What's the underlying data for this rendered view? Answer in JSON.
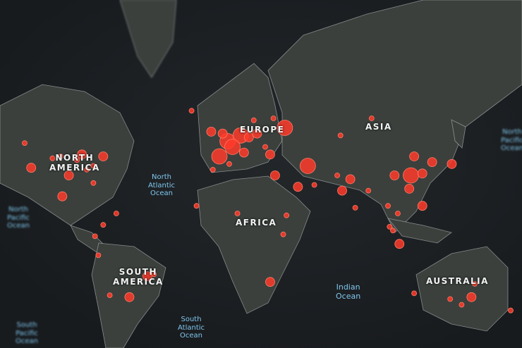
{
  "colors": {
    "background": "#1b1e21",
    "land": "#3b403c",
    "border": "#cfd6d8",
    "hotspot": "#ff3b2a",
    "ocean_label": "#7fc7ee"
  },
  "continents": {
    "north_america": "NORTH\nAMERICA",
    "europe": "EUROPE",
    "asia": "ASIA",
    "africa": "AFRICA",
    "south_america": "SOUTH\nAMERICA",
    "australia": "AUSTRALIA"
  },
  "oceans": {
    "north_atlantic": "North\nAtlantic\nOcean",
    "north_pacific_left": "North\nPacific\nOcean",
    "north_pacific_right": "North\nPacific\nOcean",
    "south_atlantic": "South\nAtlantic\nOcean",
    "indian": "Indian\nOcean",
    "south_pacific": "South\nPacific\nOcean"
  },
  "hotspots": [
    [
      2,
      48,
      3
    ],
    [
      10,
      51,
      3
    ],
    [
      -3,
      40,
      3
    ],
    [
      12,
      42,
      2
    ],
    [
      -1,
      52,
      2
    ],
    [
      5,
      45,
      3
    ],
    [
      15,
      50,
      2
    ],
    [
      20,
      52,
      2
    ],
    [
      25,
      45,
      1
    ],
    [
      -8,
      53,
      2
    ],
    [
      30,
      60,
      1
    ],
    [
      37,
      55,
      3
    ],
    [
      28,
      41,
      2
    ],
    [
      18,
      59,
      1
    ],
    [
      -20,
      64,
      1
    ],
    [
      -74,
      40,
      2
    ],
    [
      -87,
      41,
      2
    ],
    [
      -118,
      34,
      2
    ],
    [
      -95,
      30,
      2
    ],
    [
      -80,
      35,
      1
    ],
    [
      -100,
      40,
      1
    ],
    [
      -122,
      47,
      1
    ],
    [
      -84,
      33,
      1
    ],
    [
      -90,
      38,
      1
    ],
    [
      -105,
      39,
      1
    ],
    [
      -80,
      26,
      1
    ],
    [
      -99,
      19,
      2
    ],
    [
      -47,
      -23,
      2
    ],
    [
      -58,
      -34,
      2
    ],
    [
      -70,
      -33,
      1
    ],
    [
      -77,
      -12,
      1
    ],
    [
      -74,
      4,
      1
    ],
    [
      -66,
      10,
      1
    ],
    [
      -79,
      -2,
      1
    ],
    [
      -43,
      -22,
      1
    ],
    [
      31,
      30,
      2
    ],
    [
      3,
      36,
      1
    ],
    [
      -7,
      33,
      1
    ],
    [
      8,
      10,
      1
    ],
    [
      36,
      -1,
      1
    ],
    [
      28,
      -26,
      2
    ],
    [
      38,
      9,
      1
    ],
    [
      -17,
      14,
      1
    ],
    [
      51,
      35,
      3
    ],
    [
      45,
      24,
      2
    ],
    [
      55,
      25,
      1
    ],
    [
      72,
      22,
      2
    ],
    [
      77,
      28,
      2
    ],
    [
      88,
      22,
      1
    ],
    [
      80,
      13,
      1
    ],
    [
      69,
      30,
      1
    ],
    [
      114,
      30,
      3
    ],
    [
      121,
      31,
      2
    ],
    [
      116,
      40,
      2
    ],
    [
      113,
      23,
      2
    ],
    [
      104,
      30,
      2
    ],
    [
      127,
      37,
      2
    ],
    [
      139,
      36,
      2
    ],
    [
      100,
      14,
      1
    ],
    [
      106,
      10,
      1
    ],
    [
      121,
      14,
      2
    ],
    [
      101,
      3,
      1
    ],
    [
      107,
      -6,
      2
    ],
    [
      103,
      1,
      1
    ],
    [
      90,
      60,
      1
    ],
    [
      71,
      51,
      1
    ],
    [
      151,
      -34,
      2
    ],
    [
      145,
      -38,
      1
    ],
    [
      153,
      -27,
      1
    ],
    [
      116,
      -32,
      1
    ],
    [
      175,
      -41,
      1
    ],
    [
      138,
      -35,
      1
    ]
  ]
}
